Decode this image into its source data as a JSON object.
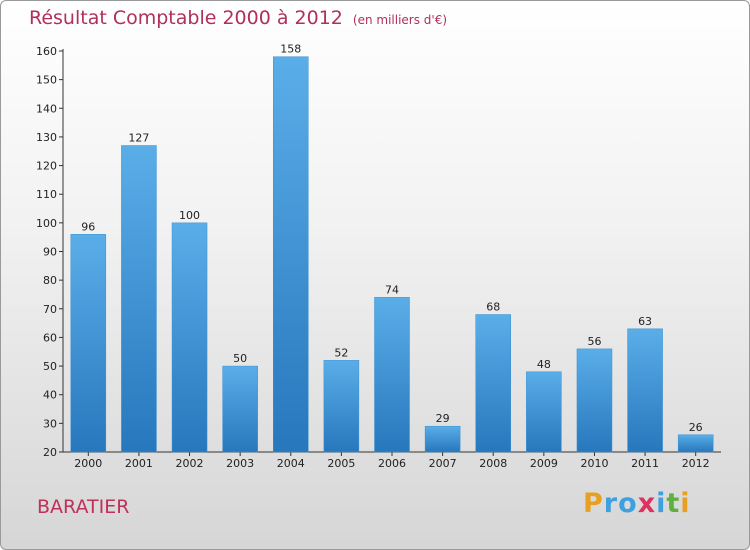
{
  "chart_data": {
    "type": "bar",
    "title": "Résultat Comptable 2000 à 2012",
    "unit_note": "(en milliers d'€)",
    "categories": [
      "2000",
      "2001",
      "2002",
      "2003",
      "2004",
      "2005",
      "2006",
      "2007",
      "2008",
      "2009",
      "2010",
      "2011",
      "2012"
    ],
    "values": [
      96,
      127,
      100,
      50,
      158,
      52,
      74,
      29,
      68,
      48,
      56,
      63,
      26
    ],
    "ylim": [
      20,
      160
    ],
    "yticks": [
      20,
      30,
      40,
      50,
      60,
      70,
      80,
      90,
      100,
      110,
      120,
      130,
      140,
      150,
      160
    ],
    "xlabel": "",
    "ylabel": "",
    "grid": false,
    "bar_color": "#4a9fe0"
  },
  "commune": "BARATIER",
  "logo": {
    "letters": [
      "P",
      "r",
      "o",
      "x",
      "i",
      "t",
      "i"
    ],
    "colors": [
      "#e8a020",
      "#3fa0e0",
      "#3fa0e0",
      "#e03060",
      "#3fa0e0",
      "#60b040",
      "#e8a020"
    ]
  },
  "colors": {
    "title": "#b0305a",
    "axis": "#333333",
    "bar_top": "#5aaee8",
    "bar_bottom": "#2777bd"
  }
}
